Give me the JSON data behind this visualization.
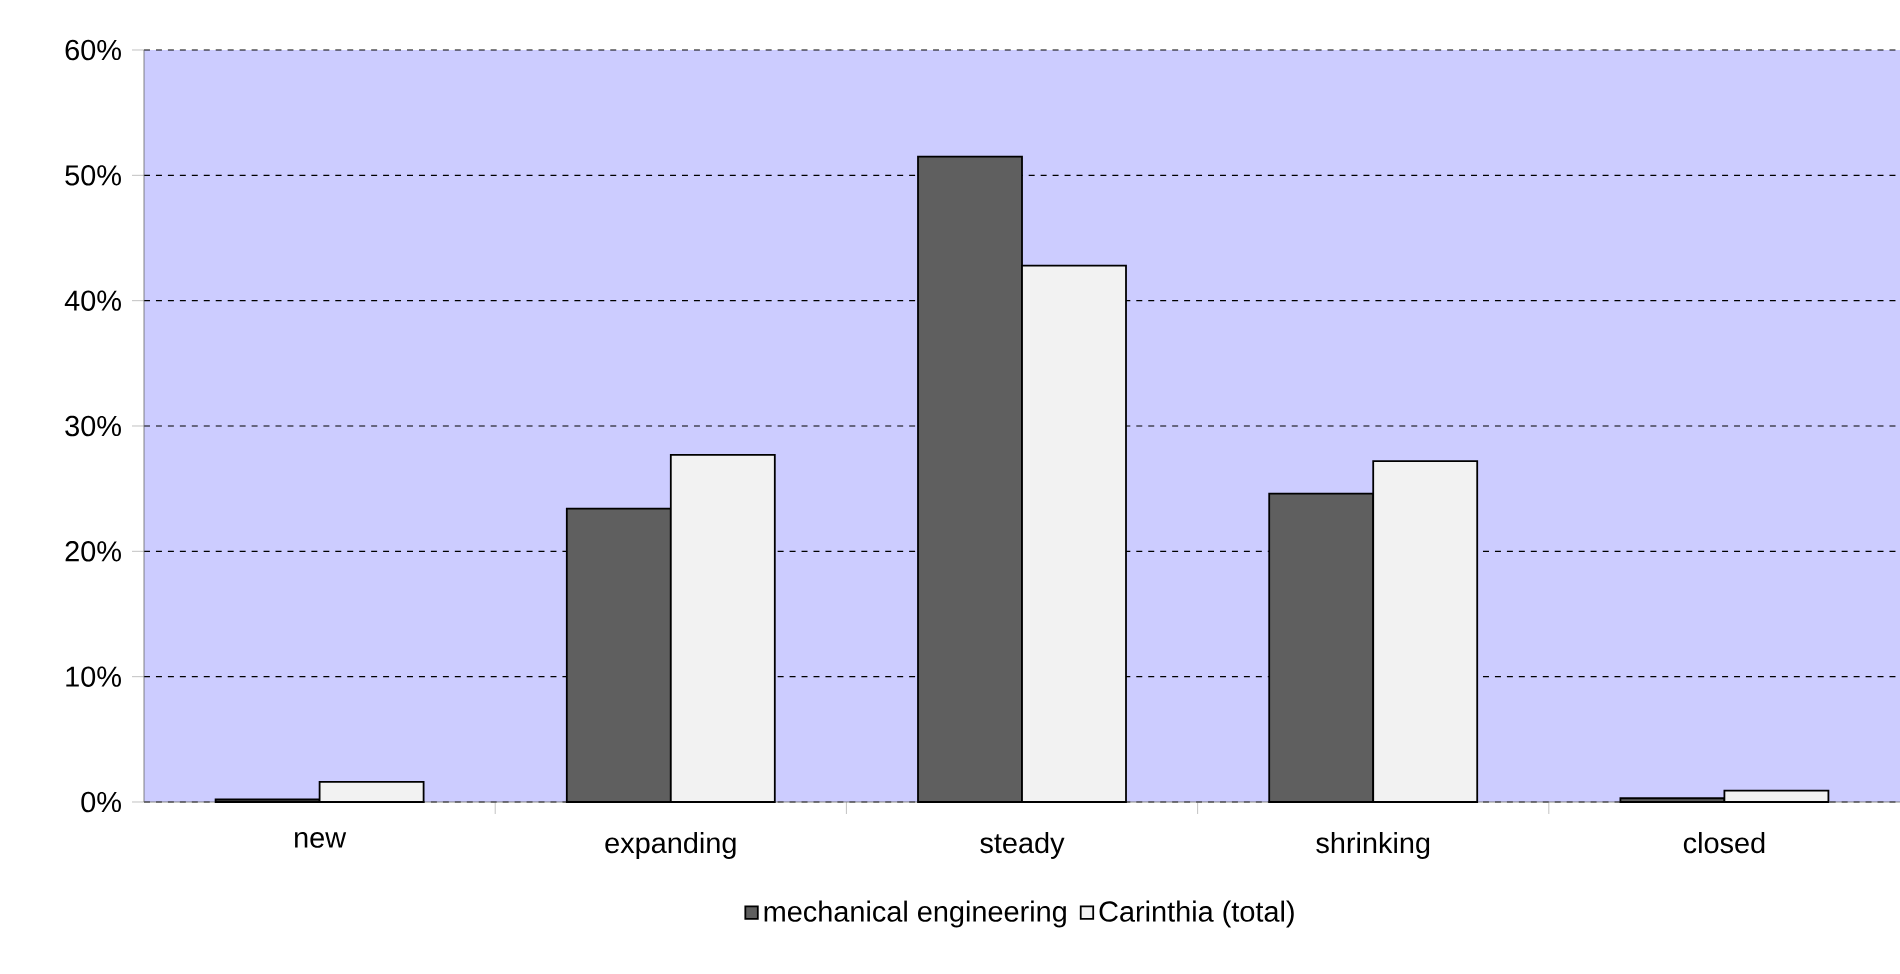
{
  "chart_data": {
    "type": "bar",
    "categories": [
      "new",
      "expanding",
      "steady",
      "shrinking",
      "closed"
    ],
    "series": [
      {
        "name": "mechanical engineering",
        "color": "#5f5f5f",
        "values": [
          0.2,
          23.4,
          51.5,
          24.6,
          0.3
        ]
      },
      {
        "name": "Carinthia (total)",
        "color": "#f2f2f2",
        "values": [
          1.6,
          27.7,
          42.8,
          27.2,
          0.9
        ]
      }
    ],
    "ylim": [
      0,
      60
    ],
    "yticks": [
      {
        "value": 0,
        "label": "0%"
      },
      {
        "value": 10,
        "label": "10%"
      },
      {
        "value": 20,
        "label": "20%"
      },
      {
        "value": 30,
        "label": "30%"
      },
      {
        "value": 40,
        "label": "40%"
      },
      {
        "value": 50,
        "label": "50%"
      },
      {
        "value": 60,
        "label": "60%"
      }
    ],
    "grid": "y",
    "legend": "bottom"
  }
}
